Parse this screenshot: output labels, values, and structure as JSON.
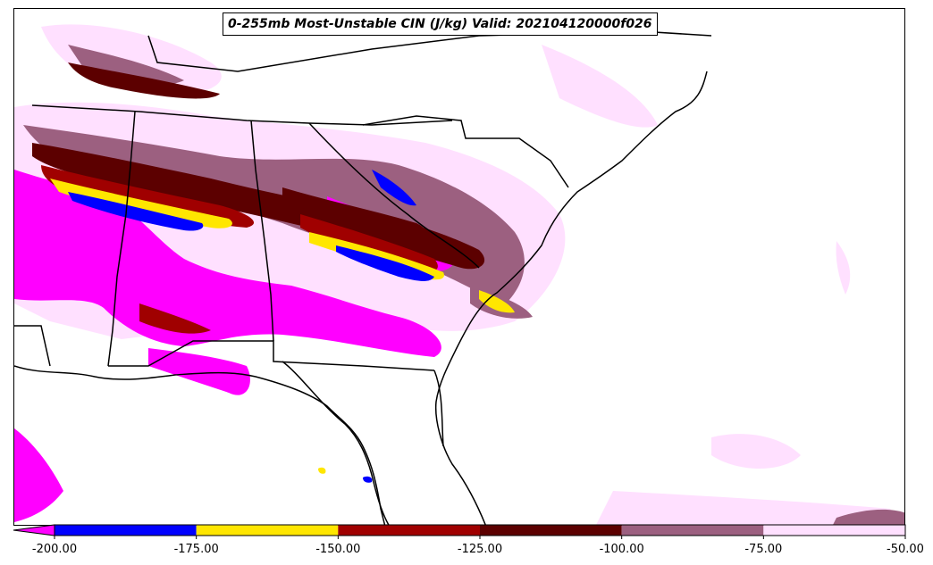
{
  "title": "0-255mb Most-Unstable CIN (J/kg) Valid: 202104120000f026",
  "colorbar": {
    "ticks": [
      "-200.00",
      "-175.00",
      "-150.00",
      "-125.00",
      "-100.00",
      "-75.00",
      "-50.00"
    ],
    "bins": [
      {
        "range": "< -200",
        "color": "#ff00ff"
      },
      {
        "range": "-200 to -175",
        "color": "#0000ff"
      },
      {
        "range": "-175 to -150",
        "color": "#ffe600"
      },
      {
        "range": "-150 to -125",
        "color": "#a00000"
      },
      {
        "range": "-125 to -100",
        "color": "#5c0000"
      },
      {
        "range": "-100 to -75",
        "color": "#9c6080"
      },
      {
        "range": "-75 to -50",
        "color": "#ffe0ff"
      }
    ]
  }
}
